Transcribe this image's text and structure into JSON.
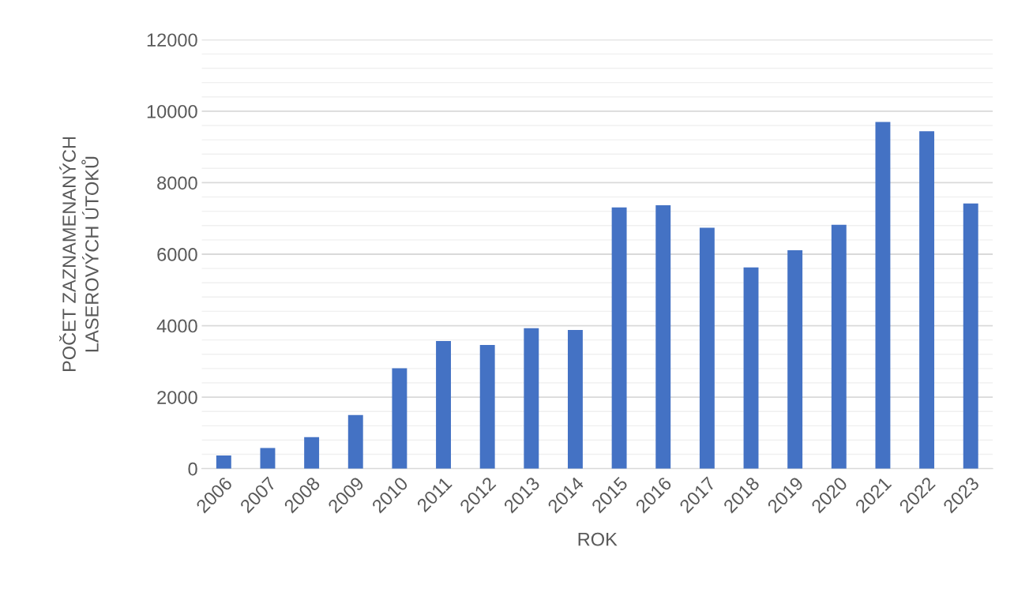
{
  "chart_data": {
    "type": "bar",
    "xlabel": "ROK",
    "ylabel": "POČET ZAZNAMENANÝCH\nLASEROVÝCH ÚTOKŮ",
    "categories": [
      "2006",
      "2007",
      "2008",
      "2009",
      "2010",
      "2011",
      "2012",
      "2013",
      "2014",
      "2015",
      "2016",
      "2017",
      "2018",
      "2019",
      "2020",
      "2021",
      "2022",
      "2023"
    ],
    "values": [
      370,
      580,
      880,
      1500,
      2810,
      3570,
      3460,
      3930,
      3880,
      7310,
      7370,
      6740,
      5630,
      6110,
      6820,
      9700,
      9440,
      7420
    ],
    "color": "#4472c4",
    "ylim": [
      0,
      12000
    ],
    "yticks": [
      0,
      {
        "value": 400,
        "label": null
      },
      {
        "value": 800,
        "label": null
      },
      {
        "value": 1200,
        "label": null
      },
      {
        "value": 1600,
        "label": null
      },
      2000,
      {
        "value": 2400,
        "label": null
      },
      {
        "value": 2800,
        "label": null
      },
      {
        "value": 3200,
        "label": null
      },
      {
        "value": 3600,
        "label": null
      },
      4000,
      {
        "value": 4400,
        "label": null
      },
      {
        "value": 4800,
        "label": null
      },
      {
        "value": 5200,
        "label": null
      },
      {
        "value": 5600,
        "label": null
      },
      6000,
      {
        "value": 6400,
        "label": null
      },
      {
        "value": 6800,
        "label": null
      },
      {
        "value": 7200,
        "label": null
      },
      {
        "value": 7600,
        "label": null
      },
      8000,
      {
        "value": 8400,
        "label": null
      },
      {
        "value": 8800,
        "label": null
      },
      {
        "value": 9200,
        "label": null
      },
      {
        "value": 9600,
        "label": null
      },
      10000,
      {
        "value": 10400,
        "label": null
      },
      {
        "value": 10800,
        "label": null
      },
      {
        "value": 11200,
        "label": null
      },
      {
        "value": 11600,
        "label": null
      },
      12000
    ],
    "grid": "y"
  }
}
